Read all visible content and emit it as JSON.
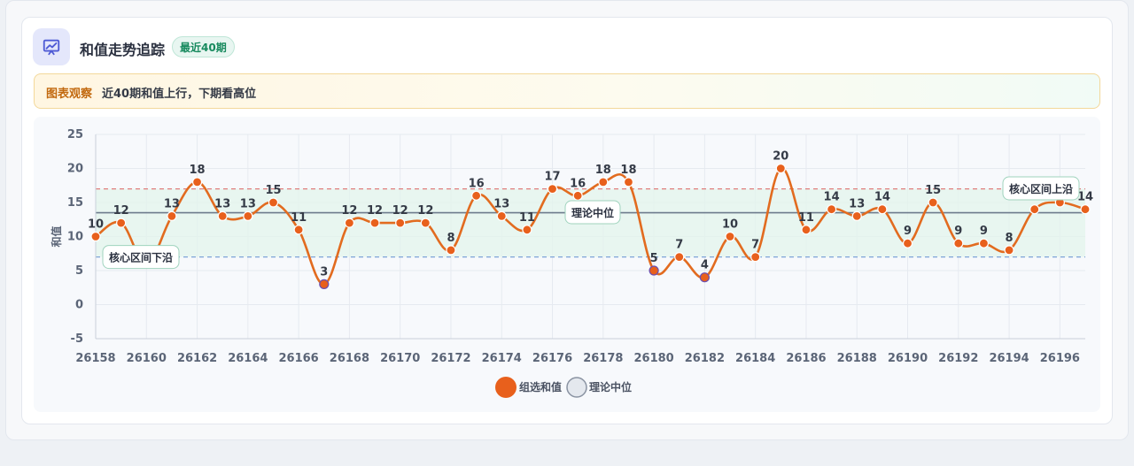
{
  "header": {
    "title": "和值走势追踪",
    "badge": "最近40期",
    "icon": "chart-trend-icon"
  },
  "observation": {
    "tag": "图表观察",
    "text": "近40期和值上行，下期看高位"
  },
  "colors": {
    "line": "#e26b1f",
    "point": "#e8601c",
    "point_low": "#6b4fb1",
    "median": "#6c7a8c",
    "upper": "#e07d7d",
    "lower": "#7ea3d8",
    "band": "#e3f4ec",
    "accent": "#4f5bd5"
  },
  "chart_data": {
    "type": "line",
    "x": [
      26158,
      26159,
      26160,
      26161,
      26162,
      26163,
      26164,
      26165,
      26166,
      26167,
      26168,
      26169,
      26170,
      26171,
      26172,
      26173,
      26174,
      26175,
      26176,
      26177,
      26178,
      26179,
      26180,
      26181,
      26182,
      26183,
      26184,
      26185,
      26186,
      26187,
      26188,
      26189,
      26190,
      26191,
      26192,
      26193,
      26194,
      26195,
      26196,
      26197
    ],
    "x_tick_labels": [
      "26158",
      "26160",
      "26162",
      "26164",
      "26166",
      "26168",
      "26170",
      "26172",
      "26174",
      "26176",
      "26178",
      "26180",
      "26182",
      "26184",
      "26186",
      "26188",
      "26190",
      "26192",
      "26194",
      "26196"
    ],
    "series": [
      {
        "name": "组选和值",
        "values": [
          10,
          12,
          6,
          13,
          18,
          13,
          13,
          15,
          11,
          3,
          12,
          12,
          12,
          12,
          8,
          16,
          13,
          11,
          17,
          16,
          18,
          18,
          5,
          7,
          4,
          10,
          7,
          20,
          11,
          14,
          13,
          14,
          9,
          15,
          9,
          9,
          8,
          14,
          15,
          14
        ]
      },
      {
        "name": "理论中位",
        "value": 13.5
      }
    ],
    "ylabel": "和值",
    "ylim": [
      -5,
      25
    ],
    "y_ticks": [
      -5,
      0,
      5,
      10,
      15,
      20,
      25
    ],
    "upper_line": 17,
    "lower_line": 7,
    "band": [
      7,
      17
    ],
    "annotations": [
      {
        "text": "核心区间下沿",
        "y": 7
      },
      {
        "text": "核心区间上沿",
        "y": 17
      },
      {
        "text": "理论中位",
        "y": 13.5
      }
    ],
    "legend": [
      "组选和值",
      "理论中位"
    ],
    "legend_position": "bottom",
    "grid": true
  }
}
